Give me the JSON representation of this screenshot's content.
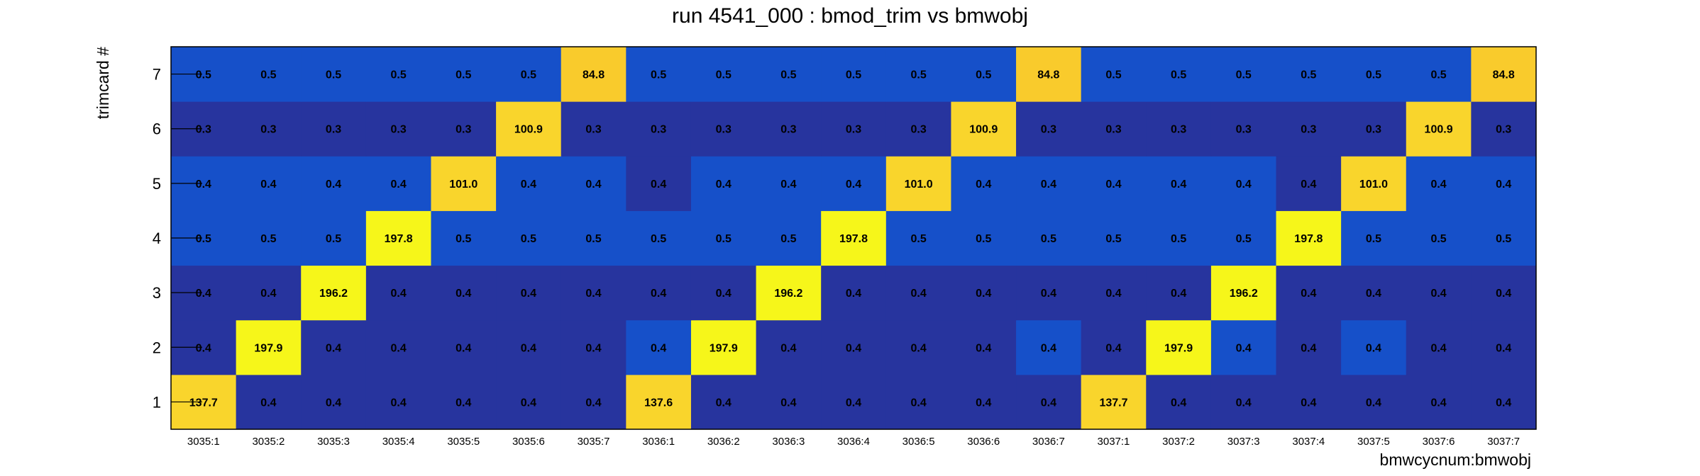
{
  "chart_data": {
    "type": "heatmap",
    "title": "run 4541_000 : bmod_trim vs bmwobj",
    "xlabel": "bmwcycnum:bmwobj",
    "ylabel": "trimcard #",
    "x_categories": [
      "3035:1",
      "3035:2",
      "3035:3",
      "3035:4",
      "3035:5",
      "3035:6",
      "3035:7",
      "3036:1",
      "3036:2",
      "3036:3",
      "3036:4",
      "3036:5",
      "3036:6",
      "3036:7",
      "3037:1",
      "3037:2",
      "3037:3",
      "3037:4",
      "3037:5",
      "3037:6",
      "3037:7"
    ],
    "y_categories": [
      "1",
      "2",
      "3",
      "4",
      "5",
      "6",
      "7"
    ],
    "values": [
      [
        137.7,
        0.4,
        0.4,
        0.4,
        0.4,
        0.4,
        0.4,
        137.6,
        0.4,
        0.4,
        0.4,
        0.4,
        0.4,
        0.4,
        137.7,
        0.4,
        0.4,
        0.4,
        0.4,
        0.4,
        0.4
      ],
      [
        0.4,
        197.9,
        0.4,
        0.4,
        0.4,
        0.4,
        0.4,
        0.4,
        197.9,
        0.4,
        0.4,
        0.4,
        0.4,
        0.4,
        0.4,
        197.9,
        0.4,
        0.4,
        0.4,
        0.4,
        0.4
      ],
      [
        0.4,
        0.4,
        196.2,
        0.4,
        0.4,
        0.4,
        0.4,
        0.4,
        0.4,
        196.2,
        0.4,
        0.4,
        0.4,
        0.4,
        0.4,
        0.4,
        196.2,
        0.4,
        0.4,
        0.4,
        0.4
      ],
      [
        0.5,
        0.5,
        0.5,
        197.8,
        0.5,
        0.5,
        0.5,
        0.5,
        0.5,
        0.5,
        197.8,
        0.5,
        0.5,
        0.5,
        0.5,
        0.5,
        0.5,
        197.8,
        0.5,
        0.5,
        0.5
      ],
      [
        0.4,
        0.4,
        0.4,
        0.4,
        101.0,
        0.4,
        0.4,
        0.4,
        0.4,
        0.4,
        0.4,
        101.0,
        0.4,
        0.4,
        0.4,
        0.4,
        0.4,
        0.4,
        101.0,
        0.4,
        0.4
      ],
      [
        0.3,
        0.3,
        0.3,
        0.3,
        0.3,
        100.9,
        0.3,
        0.3,
        0.3,
        0.3,
        0.3,
        0.3,
        100.9,
        0.3,
        0.3,
        0.3,
        0.3,
        0.3,
        0.3,
        100.9,
        0.3
      ],
      [
        0.5,
        0.5,
        0.5,
        0.5,
        0.5,
        0.5,
        84.8,
        0.5,
        0.5,
        0.5,
        0.5,
        0.5,
        0.5,
        84.8,
        0.5,
        0.5,
        0.5,
        0.5,
        0.5,
        0.5,
        84.8
      ]
    ],
    "cell_colors": [
      [
        "#f9d52c",
        "#27349e",
        "#27349e",
        "#27349e",
        "#27349e",
        "#27349e",
        "#27349e",
        "#f9d52c",
        "#27349e",
        "#27349e",
        "#27349e",
        "#27349e",
        "#27349e",
        "#27349e",
        "#f9d52c",
        "#27349e",
        "#27349e",
        "#27349e",
        "#27349e",
        "#27349e",
        "#27349e"
      ],
      [
        "#27349e",
        "#f6f61a",
        "#27349e",
        "#27349e",
        "#27349e",
        "#27349e",
        "#27349e",
        "#1650c9",
        "#f6f61a",
        "#27349e",
        "#27349e",
        "#27349e",
        "#27349e",
        "#1650c9",
        "#27349e",
        "#f6f61a",
        "#1650c9",
        "#27349e",
        "#1650c9",
        "#27349e",
        "#27349e"
      ],
      [
        "#27349e",
        "#27349e",
        "#f6f61a",
        "#27349e",
        "#27349e",
        "#27349e",
        "#27349e",
        "#27349e",
        "#27349e",
        "#f6f61a",
        "#27349e",
        "#27349e",
        "#27349e",
        "#27349e",
        "#27349e",
        "#27349e",
        "#f6f61a",
        "#27349e",
        "#27349e",
        "#27349e",
        "#27349e"
      ],
      [
        "#1650c9",
        "#1650c9",
        "#1650c9",
        "#f6f61a",
        "#1650c9",
        "#1650c9",
        "#1650c9",
        "#1650c9",
        "#1650c9",
        "#1650c9",
        "#f6f61a",
        "#1650c9",
        "#1650c9",
        "#1650c9",
        "#1650c9",
        "#1650c9",
        "#1650c9",
        "#f6f61a",
        "#1650c9",
        "#1650c9",
        "#1650c9"
      ],
      [
        "#1650c9",
        "#1650c9",
        "#1650c9",
        "#1650c9",
        "#f9d52c",
        "#1650c9",
        "#1650c9",
        "#27349e",
        "#1650c9",
        "#1650c9",
        "#1650c9",
        "#f9d52c",
        "#1650c9",
        "#1650c9",
        "#1650c9",
        "#1650c9",
        "#1650c9",
        "#27349e",
        "#f9d52c",
        "#1650c9",
        "#1650c9"
      ],
      [
        "#27349e",
        "#27349e",
        "#27349e",
        "#27349e",
        "#27349e",
        "#f9d52c",
        "#27349e",
        "#27349e",
        "#27349e",
        "#27349e",
        "#27349e",
        "#27349e",
        "#f9d52c",
        "#27349e",
        "#27349e",
        "#27349e",
        "#27349e",
        "#27349e",
        "#27349e",
        "#f9d52c",
        "#27349e"
      ],
      [
        "#1650c9",
        "#1650c9",
        "#1650c9",
        "#1650c9",
        "#1650c9",
        "#1650c9",
        "#f9cb2c",
        "#1650c9",
        "#1650c9",
        "#1650c9",
        "#1650c9",
        "#1650c9",
        "#1650c9",
        "#f9cb2c",
        "#1650c9",
        "#1650c9",
        "#1650c9",
        "#1650c9",
        "#1650c9",
        "#1650c9",
        "#f9cb2c"
      ]
    ],
    "label_format": "one decimal",
    "grid": false,
    "legend": "none"
  }
}
